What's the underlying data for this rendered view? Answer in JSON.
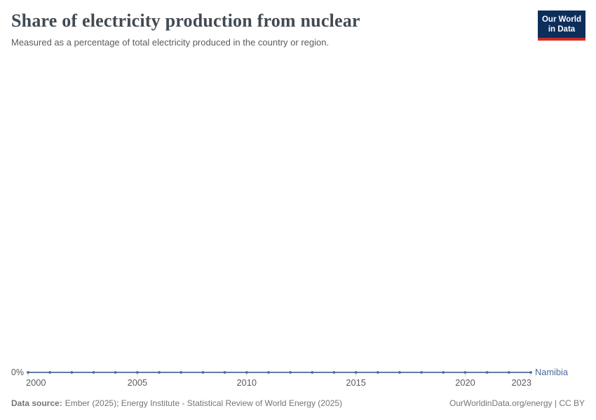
{
  "header": {
    "title": "Share of electricity production from nuclear",
    "subtitle": "Measured as a percentage of total electricity produced in the country or region."
  },
  "logo": {
    "line1": "Our World",
    "line2": "in Data",
    "bg_color": "#0d2e5b",
    "stripe_color": "#cf2b27"
  },
  "chart_data": {
    "type": "line",
    "title": "Share of electricity production from nuclear",
    "subtitle": "Measured as a percentage of total electricity produced in the country or region.",
    "unit": "%",
    "grid": false,
    "legend_position": "end-of-line-label",
    "x_range": [
      2000,
      2023
    ],
    "x_ticks": [
      2000,
      2005,
      2010,
      2015,
      2020,
      2023
    ],
    "y_ticks": [
      {
        "value": 0,
        "label": "0%"
      }
    ],
    "series": [
      {
        "name": "Namibia",
        "color": "#4C6A9C",
        "x": [
          2000,
          2001,
          2002,
          2003,
          2004,
          2005,
          2006,
          2007,
          2008,
          2009,
          2010,
          2011,
          2012,
          2013,
          2014,
          2015,
          2016,
          2017,
          2018,
          2019,
          2020,
          2021,
          2022,
          2023
        ],
        "values": [
          0,
          0,
          0,
          0,
          0,
          0,
          0,
          0,
          0,
          0,
          0,
          0,
          0,
          0,
          0,
          0,
          0,
          0,
          0,
          0,
          0,
          0,
          0,
          0
        ]
      }
    ]
  },
  "footer": {
    "source_label": "Data source:",
    "source_text": "Ember (2025); Energy Institute - Statistical Review of World Energy (2025)",
    "right_text": "OurWorldinData.org/energy | CC BY"
  }
}
